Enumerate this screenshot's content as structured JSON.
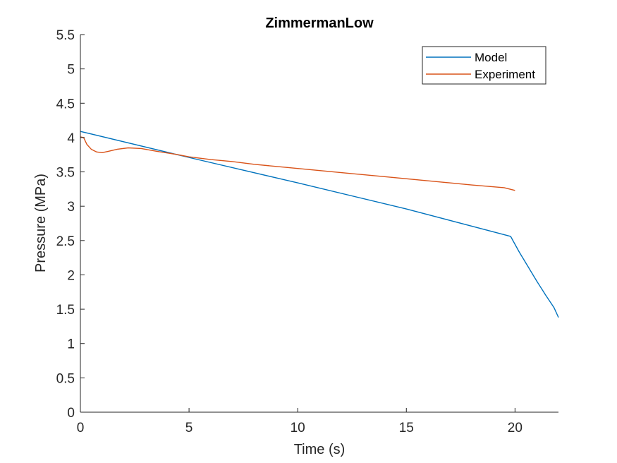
{
  "chart_data": {
    "type": "line",
    "title": "ZimmermanLow",
    "xlabel": "Time (s)",
    "ylabel": "Pressure (MPa)",
    "xlim": [
      0,
      22
    ],
    "ylim": [
      0,
      5.5
    ],
    "xticks": [
      0,
      5,
      10,
      15,
      20
    ],
    "xtick_labels": [
      "0",
      "5",
      "10",
      "15",
      "20"
    ],
    "yticks": [
      0,
      0.5,
      1,
      1.5,
      2,
      2.5,
      3,
      3.5,
      4,
      4.5,
      5,
      5.5
    ],
    "ytick_labels": [
      "0",
      "0.5",
      "1",
      "1.5",
      "2",
      "2.5",
      "3",
      "3.5",
      "4",
      "4.5",
      "5",
      "5.5"
    ],
    "grid": false,
    "legend_position": "top-right",
    "series": [
      {
        "name": "Model",
        "color": "#0072BD",
        "x": [
          0,
          5,
          10,
          15,
          19.8,
          20.2,
          20.6,
          21.0,
          21.4,
          21.8,
          22.0
        ],
        "y": [
          4.09,
          3.71,
          3.34,
          2.96,
          2.56,
          2.33,
          2.12,
          1.91,
          1.71,
          1.52,
          1.38
        ]
      },
      {
        "name": "Experiment",
        "color": "#D95319",
        "x": [
          0,
          0.15,
          0.3,
          0.5,
          0.75,
          1.0,
          1.3,
          1.7,
          2.2,
          2.8,
          3.5,
          4.5,
          5,
          6,
          7,
          8,
          10,
          12,
          14,
          16,
          18,
          19.5,
          20
        ],
        "y": [
          4.01,
          4.0,
          3.9,
          3.83,
          3.79,
          3.78,
          3.8,
          3.83,
          3.85,
          3.84,
          3.8,
          3.75,
          3.72,
          3.68,
          3.65,
          3.61,
          3.55,
          3.49,
          3.43,
          3.37,
          3.31,
          3.27,
          3.23
        ]
      }
    ]
  }
}
